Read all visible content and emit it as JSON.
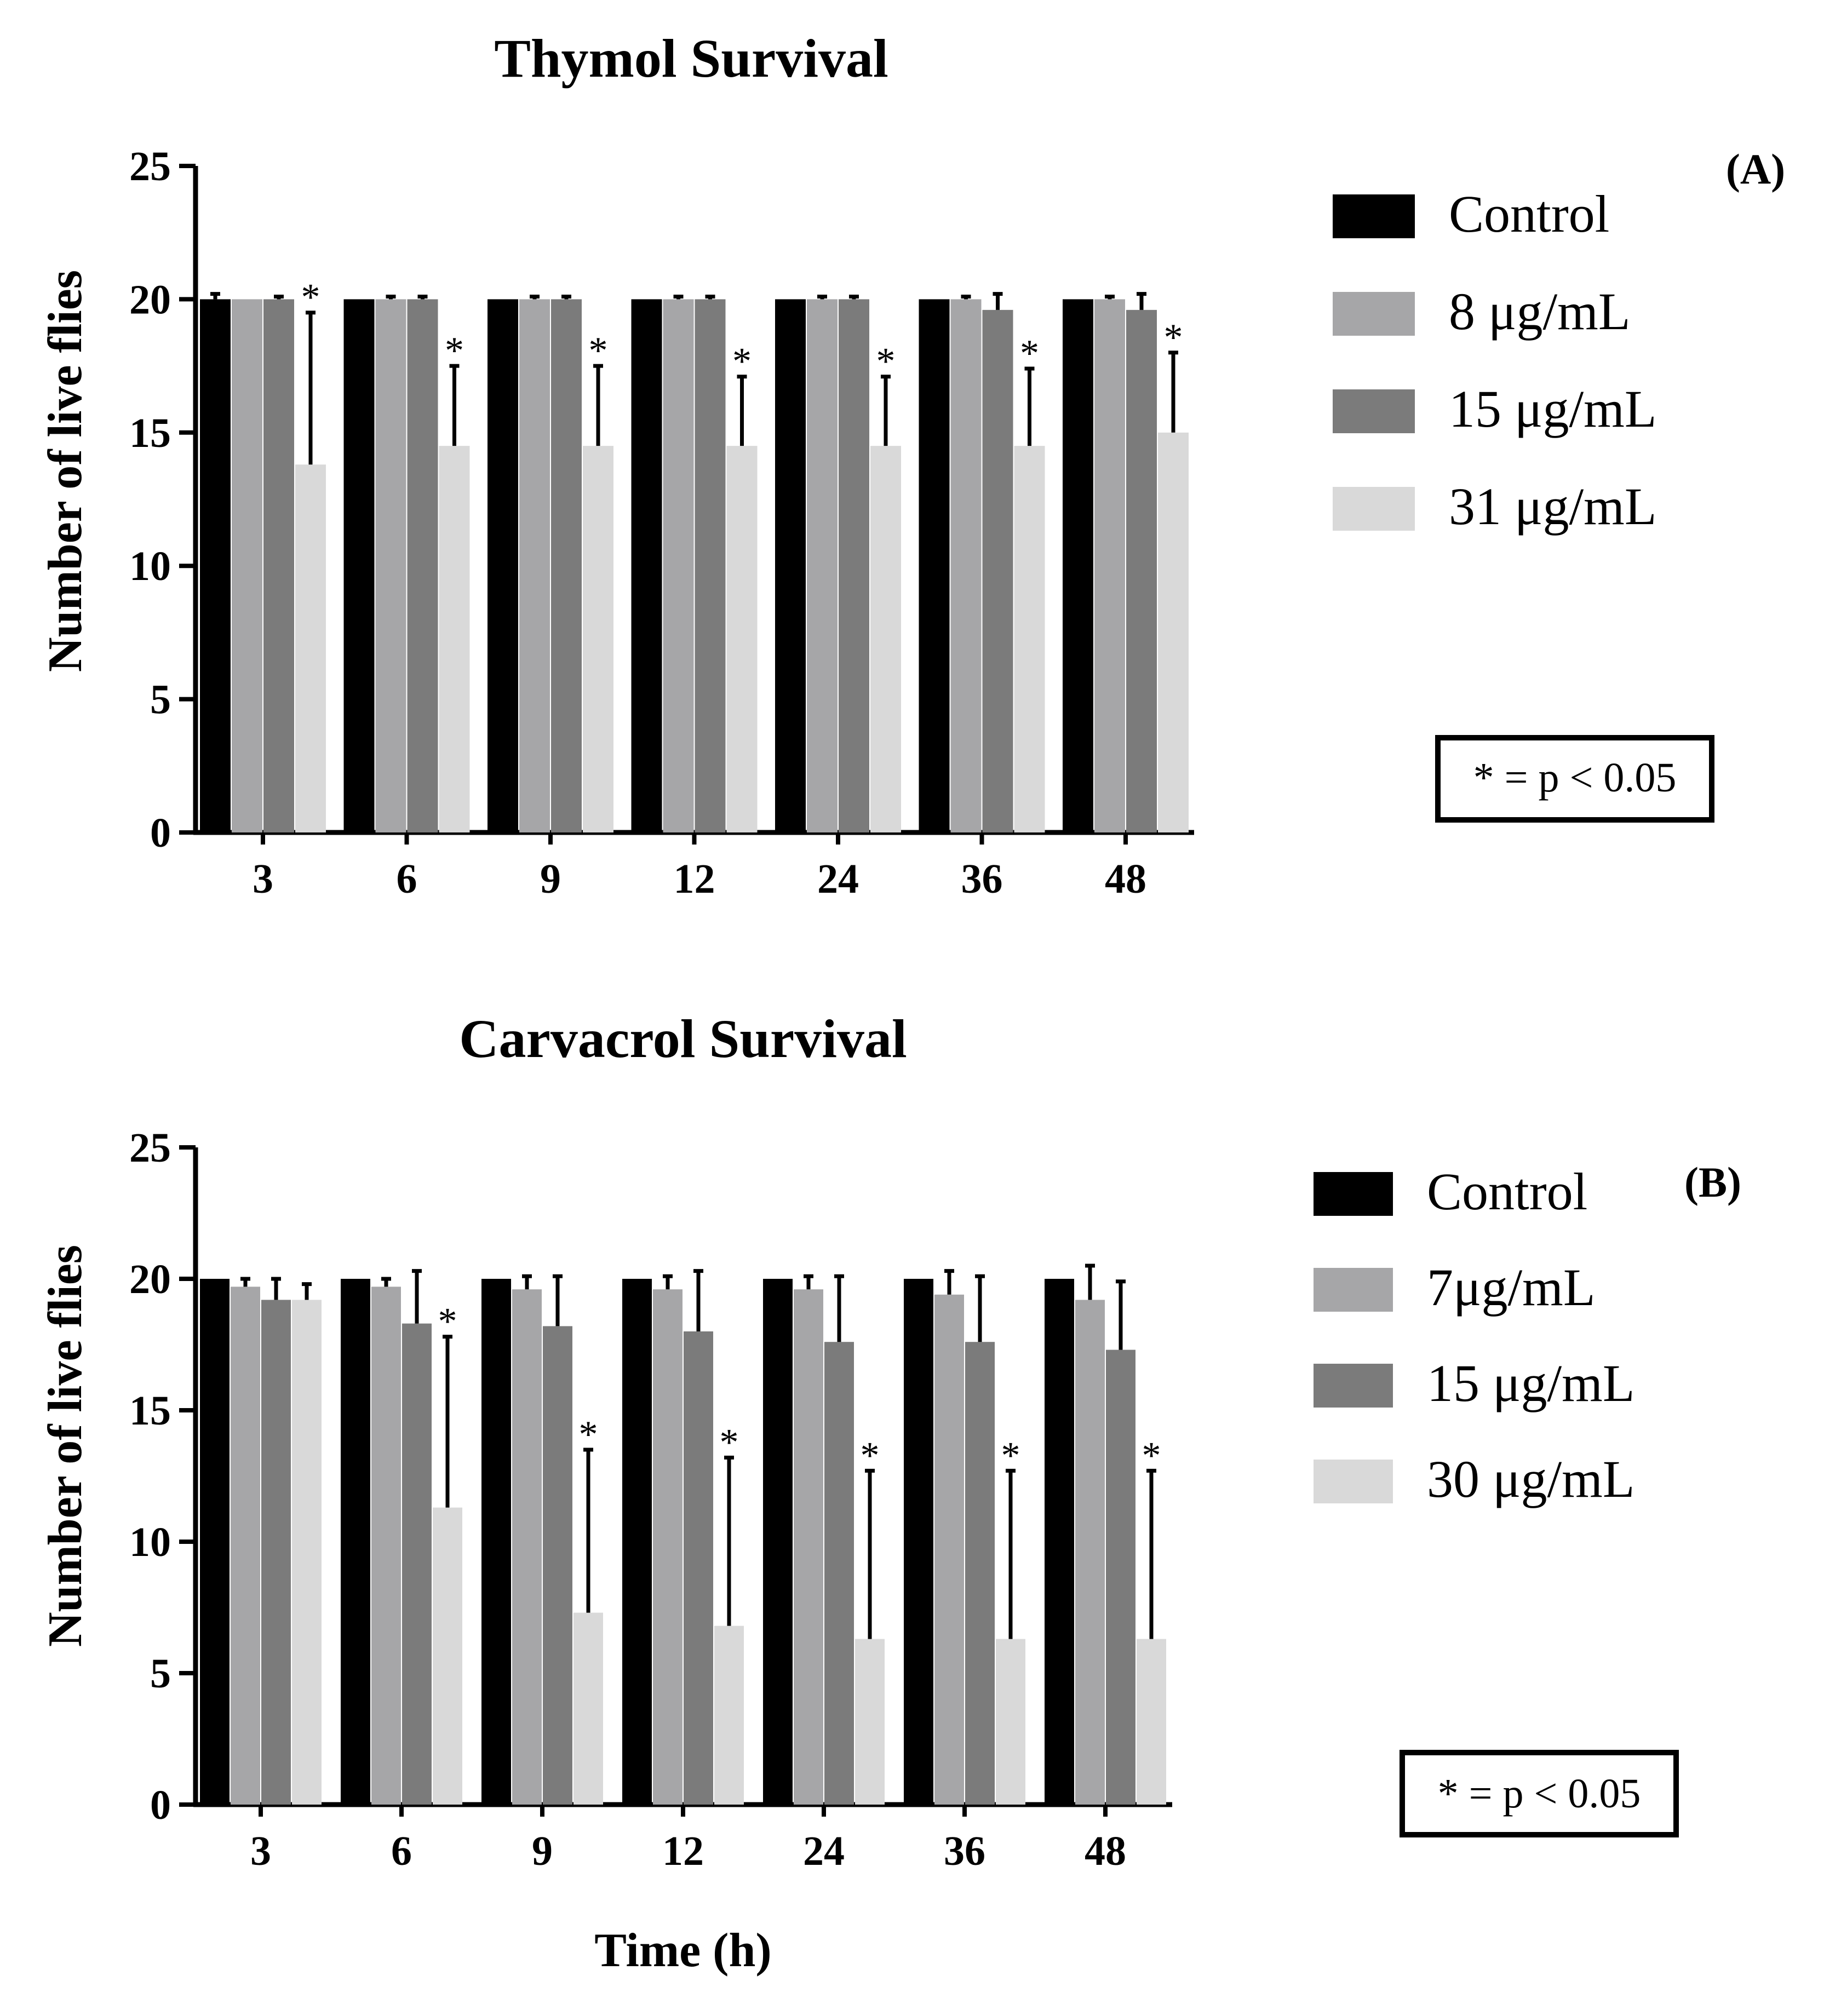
{
  "figure": {
    "xlabel": "Time (h)",
    "significance_note": "* = p < 0.05"
  },
  "chart_data": [
    {
      "type": "bar",
      "title": "Thymol Survival",
      "panel_label": "(A)",
      "xlabel": "Time (h)",
      "ylabel": "Number of live flies",
      "ylim": [
        0,
        25
      ],
      "yticks": [
        0,
        5,
        10,
        15,
        20,
        25
      ],
      "categories": [
        "3",
        "6",
        "9",
        "12",
        "24",
        "36",
        "48"
      ],
      "colors": [
        "#000000",
        "#a6a6a8",
        "#7b7b7b",
        "#d9d9d9"
      ],
      "series": [
        {
          "name": "Control",
          "values": [
            20,
            20,
            20,
            20,
            20,
            20,
            20
          ],
          "error": [
            0.2,
            0,
            0,
            0,
            0,
            0,
            0
          ]
        },
        {
          "name": "8 μg/mL",
          "values": [
            20,
            20,
            20,
            20,
            20,
            20,
            20
          ],
          "error": [
            0,
            0.1,
            0.1,
            0.1,
            0.1,
            0.1,
            0.1
          ]
        },
        {
          "name": "15 μg/mL",
          "values": [
            20,
            20,
            20,
            20,
            20,
            19.6,
            19.6
          ],
          "error": [
            0.1,
            0.1,
            0.1,
            0.1,
            0.1,
            0.6,
            0.6
          ]
        },
        {
          "name": "31 μg/mL",
          "values": [
            13.8,
            14.5,
            14.5,
            14.5,
            14.5,
            14.5,
            15
          ],
          "error": [
            5.7,
            3,
            3,
            2.6,
            2.6,
            2.9,
            3
          ]
        }
      ],
      "significant": [
        [
          false,
          false,
          false,
          false,
          false,
          false,
          false
        ],
        [
          false,
          false,
          false,
          false,
          false,
          false,
          false
        ],
        [
          false,
          false,
          false,
          false,
          false,
          false,
          false
        ],
        [
          true,
          true,
          true,
          true,
          true,
          true,
          true
        ]
      ],
      "significance_note": "* = p < 0.05"
    },
    {
      "type": "bar",
      "title": "Carvacrol Survival",
      "panel_label": "(B)",
      "xlabel": "Time (h)",
      "ylabel": "Number of live flies",
      "ylim": [
        0,
        25
      ],
      "yticks": [
        0,
        5,
        10,
        15,
        20,
        25
      ],
      "categories": [
        "3",
        "6",
        "9",
        "12",
        "24",
        "36",
        "48"
      ],
      "colors": [
        "#000000",
        "#a6a6a8",
        "#7b7b7b",
        "#d9d9d9"
      ],
      "series": [
        {
          "name": "Control",
          "values": [
            20,
            20,
            20,
            20,
            20,
            20,
            20
          ],
          "error": [
            0,
            0,
            0,
            0,
            0,
            0,
            0
          ]
        },
        {
          "name": "7μg/mL",
          "values": [
            19.7,
            19.7,
            19.6,
            19.6,
            19.6,
            19.4,
            19.2
          ],
          "error": [
            0.3,
            0.3,
            0.5,
            0.5,
            0.5,
            0.9,
            1.3
          ]
        },
        {
          "name": "15 μg/mL",
          "values": [
            19.2,
            18.3,
            18.2,
            18,
            17.6,
            17.6,
            17.3
          ],
          "error": [
            0.8,
            2,
            1.9,
            2.3,
            2.5,
            2.5,
            2.6
          ]
        },
        {
          "name": "30 μg/mL",
          "values": [
            19.2,
            11.3,
            7.3,
            6.8,
            6.3,
            6.3,
            6.3
          ],
          "error": [
            0.6,
            6.5,
            6.2,
            6.4,
            6.4,
            6.4,
            6.4
          ]
        }
      ],
      "significant": [
        [
          false,
          false,
          false,
          false,
          false,
          false,
          false
        ],
        [
          false,
          false,
          false,
          false,
          false,
          false,
          false
        ],
        [
          false,
          false,
          false,
          false,
          false,
          false,
          false
        ],
        [
          false,
          true,
          true,
          true,
          true,
          true,
          true
        ]
      ],
      "significance_note": "* = p < 0.05"
    }
  ]
}
